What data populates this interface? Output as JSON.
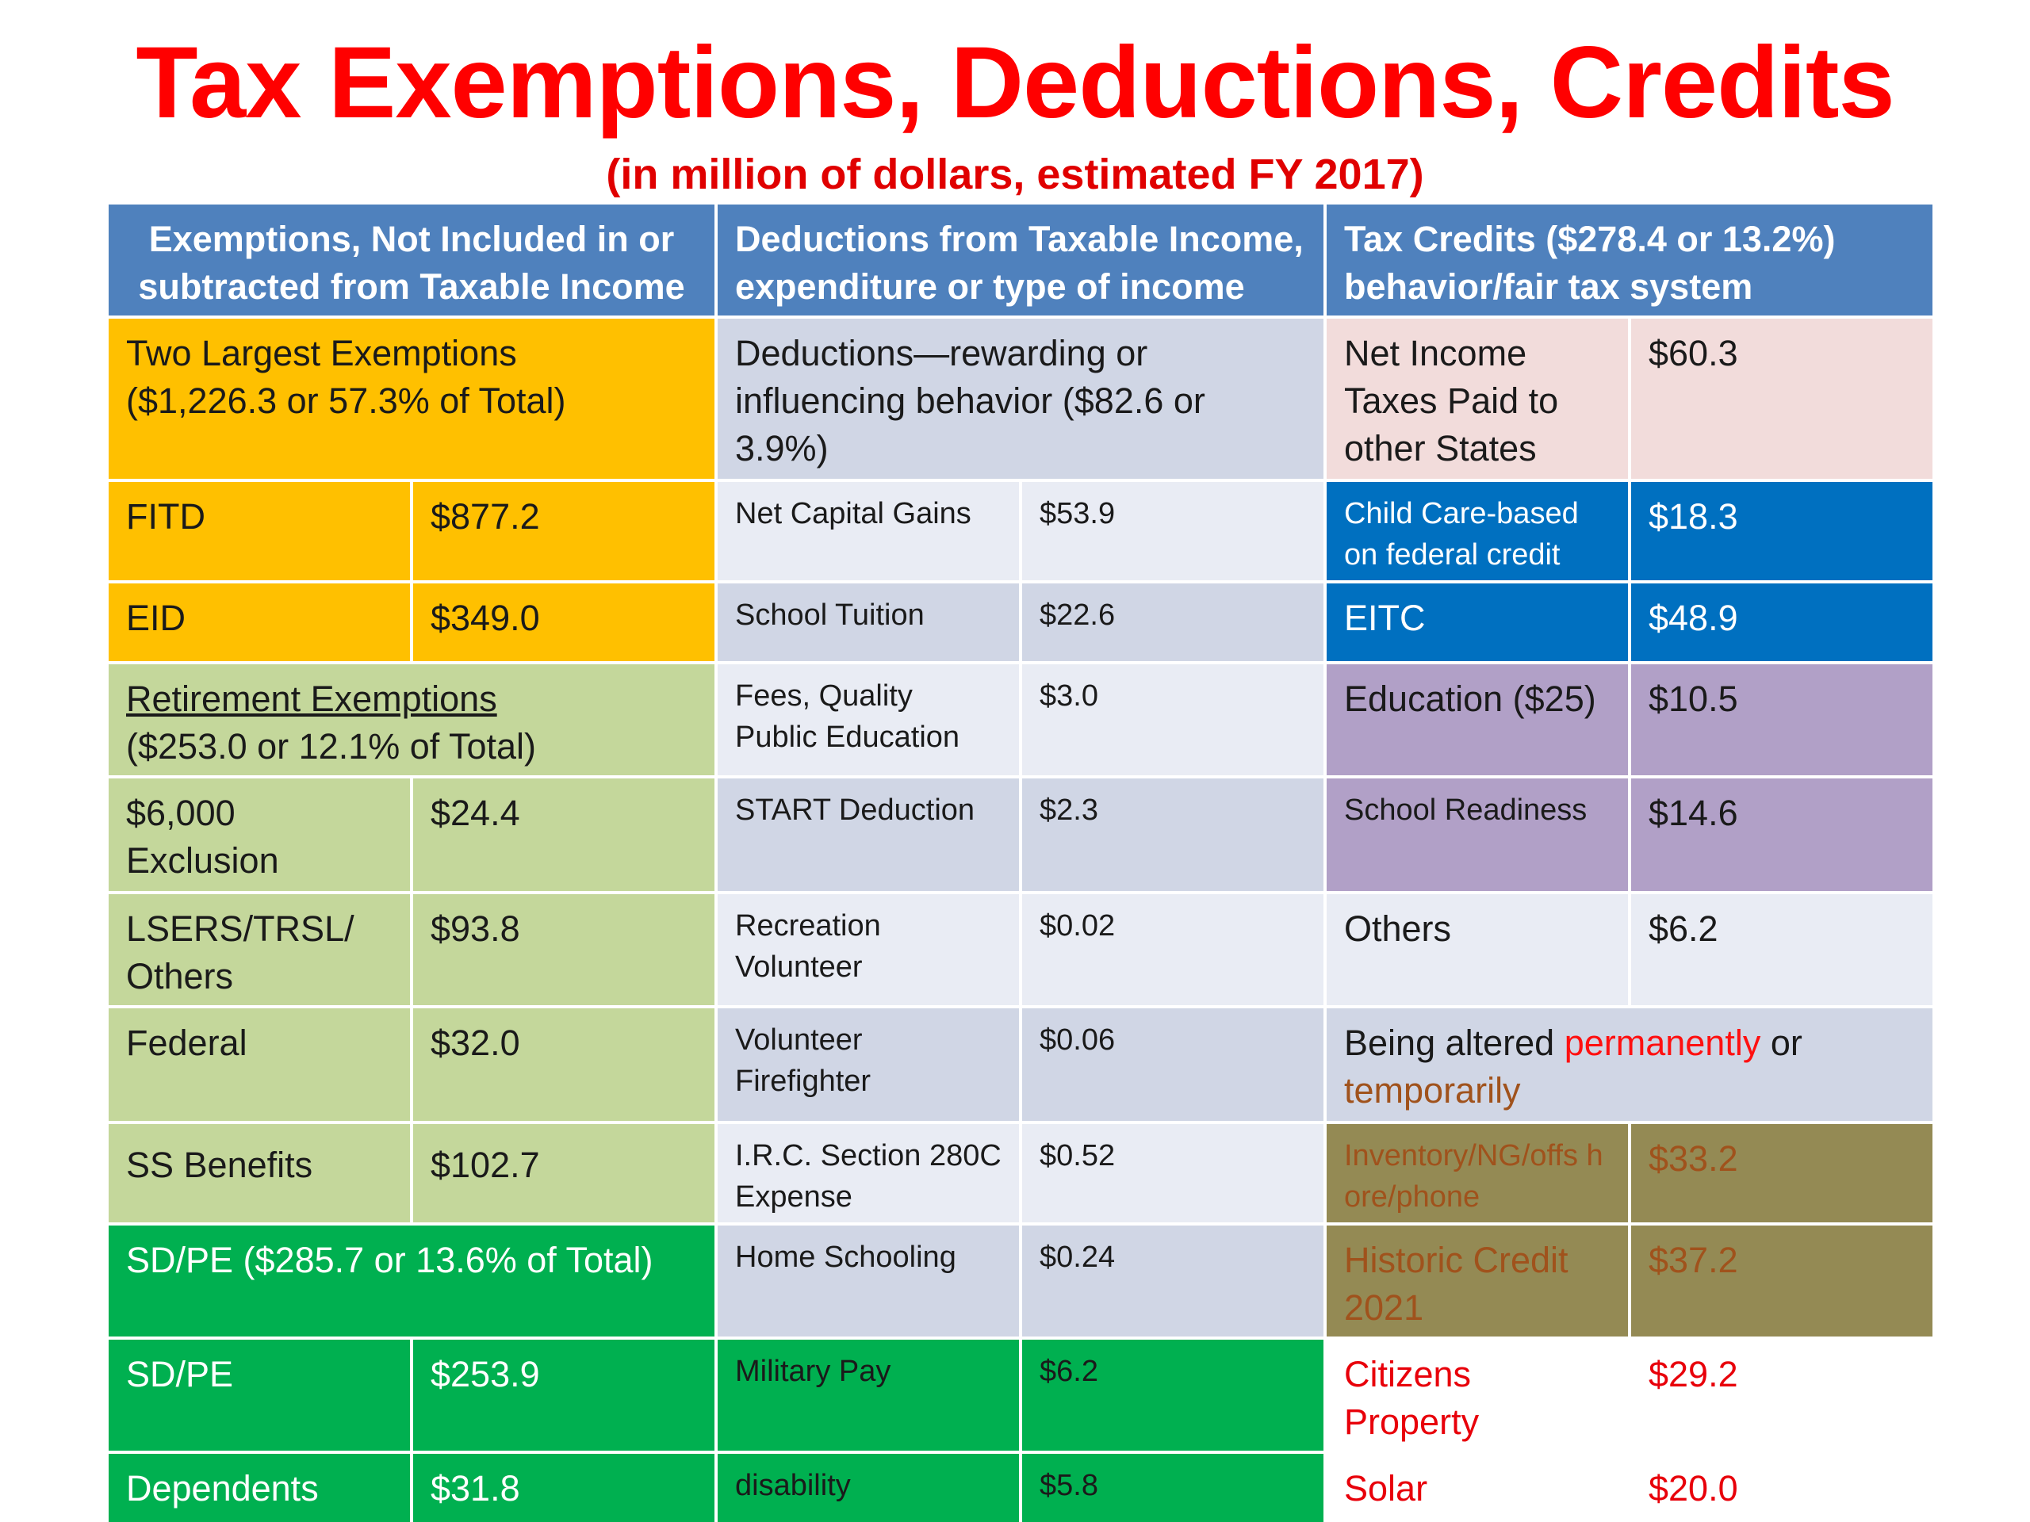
{
  "title": "Tax Exemptions, Deductions, Credits",
  "subtitle": "(in million of dollars, estimated FY 2017)",
  "headers": {
    "exemptions": "Exemptions, Not Included in or subtracted from Taxable Income",
    "deductions": "Deductions from Taxable Income, expenditure or type of income",
    "credits": "Tax Credits ($278.4 or 13.2%) behavior/fair tax system"
  },
  "exemptions": {
    "two_largest": {
      "title": "Two Largest Exemptions",
      "total": "($1,226.3 or 57.3% of Total)"
    },
    "fitd": {
      "label": "FITD",
      "value": "$877.2"
    },
    "eid": {
      "label": "EID",
      "value": "$349.0"
    },
    "retirement": {
      "title": "Retirement Exemptions",
      "total": "($253.0 or 12.1% of Total)"
    },
    "exclusion": {
      "label": "$6,000 Exclusion",
      "value": "$24.4"
    },
    "lsers": {
      "label": "LSERS/TRSL/ Others",
      "value": "$93.8"
    },
    "federal": {
      "label": "Federal",
      "value": "$32.0"
    },
    "ss": {
      "label": "SS Benefits",
      "value": "$102.7"
    },
    "sdpe_group": {
      "title": "SD/PE ($285.7 or 13.6% of Total)"
    },
    "sdpe": {
      "label": "SD/PE",
      "value": "$253.9"
    },
    "dependents": {
      "label": "Dependents",
      "value": "$31.8"
    }
  },
  "deductions": {
    "behavior": {
      "text": "Deductions—rewarding or influencing behavior ($82.6 or 3.9%)"
    },
    "cap_gains": {
      "label": "Net Capital Gains",
      "value": "$53.9"
    },
    "tuition": {
      "label": "School Tuition",
      "value": "$22.6"
    },
    "fees": {
      "label": "Fees, Quality Public Education",
      "value": "$3.0"
    },
    "start": {
      "label": "START Deduction",
      "value": "$2.3"
    },
    "recreation": {
      "label": "Recreation Volunteer",
      "value": "$0.02"
    },
    "firefighter": {
      "label": "Volunteer Firefighter",
      "value": "$0.06"
    },
    "irc": {
      "label": "I.R.C. Section 280C Expense",
      "value": "$0.52"
    },
    "home": {
      "label": "Home Schooling",
      "value": "$0.24"
    },
    "military": {
      "label": "Military Pay",
      "value": "$6.2"
    },
    "disability": {
      "label": "disability",
      "value": "$5.8"
    }
  },
  "credits": {
    "net_income": {
      "label": "Net Income Taxes Paid to other States",
      "value": "$60.3"
    },
    "child_care": {
      "label": "Child Care-based on federal credit",
      "value": "$18.3"
    },
    "eitc": {
      "label": "EITC",
      "value": "$48.9"
    },
    "education": {
      "label": "Education ($25)",
      "value": "$10.5"
    },
    "readiness": {
      "label": "School Readiness",
      "value": "$14.6"
    },
    "others": {
      "label": "Others",
      "value": "$6.2"
    },
    "altered": {
      "prefix": "Being altered ",
      "permanently": "permanently",
      "or": " or",
      "temporarily": "temporarily"
    },
    "inventory": {
      "label": "Inventory/NG/offs hore/phone",
      "value": "$33.2"
    },
    "historic": {
      "label": "Historic Credit 2021",
      "value": "$37.2"
    },
    "citizens": {
      "label": "Citizens Property",
      "value": "$29.2"
    },
    "solar": {
      "label": "Solar",
      "value": "$20.0"
    }
  },
  "colors": {
    "header_blue": "#4f81bd",
    "gold": "#ffc000",
    "light_green": "#c4d79b",
    "green": "#00b050",
    "gray_blue_dark": "#d0d6e5",
    "gray_blue_light": "#e9ecf4",
    "pink": "#f2dcdb",
    "blue": "#0070c0",
    "purple": "#b1a0c7",
    "olive": "#948a54",
    "title_red": "#ff0000"
  }
}
